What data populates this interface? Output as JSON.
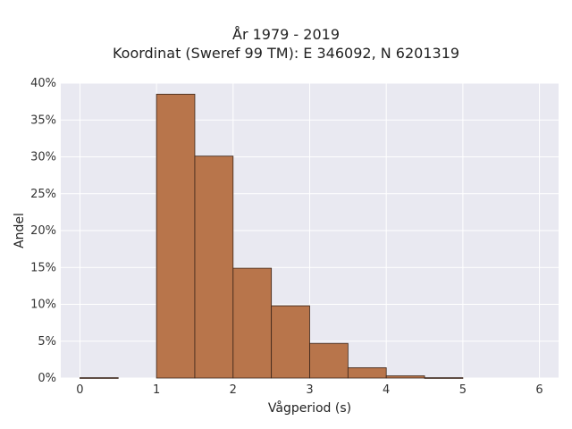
{
  "chart_data": {
    "type": "bar",
    "title": "År 1979 - 2019",
    "subtitle": "Koordinat (Sweref 99 TM): E 346092, N 6201319",
    "xlabel": "Vågperiod (s)",
    "ylabel": "Andel",
    "bin_width": 0.5,
    "bins": [
      {
        "x0": 0.0,
        "x1": 0.5,
        "value": 0.05
      },
      {
        "x0": 1.0,
        "x1": 1.5,
        "value": 38.5
      },
      {
        "x0": 1.5,
        "x1": 2.0,
        "value": 30.1
      },
      {
        "x0": 2.0,
        "x1": 2.5,
        "value": 14.9
      },
      {
        "x0": 2.5,
        "x1": 3.0,
        "value": 9.8
      },
      {
        "x0": 3.0,
        "x1": 3.5,
        "value": 4.7
      },
      {
        "x0": 3.5,
        "x1": 4.0,
        "value": 1.4
      },
      {
        "x0": 4.0,
        "x1": 4.5,
        "value": 0.3
      },
      {
        "x0": 4.5,
        "x1": 5.0,
        "value": 0.05
      }
    ],
    "xlim": [
      -0.25,
      6.25
    ],
    "ylim": [
      0,
      40
    ],
    "xticks": [
      0,
      1,
      2,
      3,
      4,
      5,
      6
    ],
    "yticks": [
      0,
      5,
      10,
      15,
      20,
      25,
      30,
      35,
      40
    ],
    "ytick_suffix": "%",
    "grid": true,
    "colors": {
      "bar_fill": "#b8754b",
      "bar_edge": "#3a2418",
      "plot_bg": "#e9e9f1",
      "grid": "#ffffff"
    }
  }
}
